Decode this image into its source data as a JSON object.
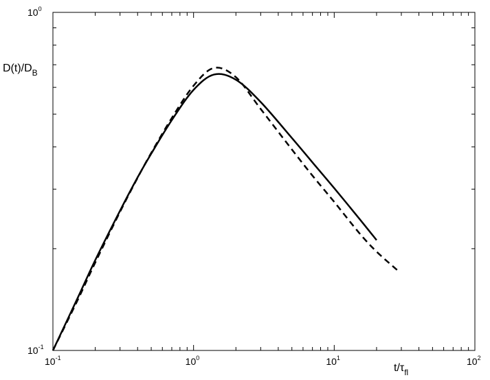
{
  "chart_data": {
    "type": "line",
    "title": "",
    "xlabel": {
      "base": "t/",
      "greek": "τ",
      "sub": "fl"
    },
    "ylabel": {
      "base": "D(t)/D",
      "sub": "B"
    },
    "xscale": "log",
    "yscale": "log",
    "xlim": [
      0.1,
      100
    ],
    "ylim": [
      0.1,
      1
    ],
    "grid": false,
    "legend": "none",
    "x_ticks": [
      {
        "value": 0.1,
        "base": "10",
        "exp": "-1"
      },
      {
        "value": 1,
        "base": "10",
        "exp": "0"
      },
      {
        "value": 10,
        "base": "10",
        "exp": "1"
      },
      {
        "value": 100,
        "base": "10",
        "exp": "2"
      }
    ],
    "y_ticks": [
      {
        "value": 0.1,
        "base": "10",
        "exp": "-1"
      },
      {
        "value": 1,
        "base": "10",
        "exp": "0"
      }
    ],
    "series": [
      {
        "style": "solid",
        "color": "#000000",
        "x": [
          0.1,
          0.15,
          0.2,
          0.3,
          0.4,
          0.5,
          0.7,
          1.0,
          1.4,
          2.0,
          3.0,
          5.0,
          7.0,
          10.0,
          15.0,
          20.0
        ],
        "y": [
          0.1,
          0.143,
          0.185,
          0.259,
          0.325,
          0.382,
          0.48,
          0.59,
          0.655,
          0.632,
          0.543,
          0.425,
          0.36,
          0.302,
          0.246,
          0.212
        ]
      },
      {
        "style": "dashed",
        "color": "#000000",
        "x": [
          0.1,
          0.15,
          0.2,
          0.3,
          0.4,
          0.5,
          0.7,
          1.0,
          1.4,
          2.0,
          3.0,
          5.0,
          7.0,
          10.0,
          15.0,
          20.0,
          28.0
        ],
        "y": [
          0.1,
          0.141,
          0.182,
          0.257,
          0.324,
          0.384,
          0.487,
          0.607,
          0.685,
          0.643,
          0.518,
          0.393,
          0.329,
          0.275,
          0.223,
          0.196,
          0.173
        ]
      }
    ]
  }
}
